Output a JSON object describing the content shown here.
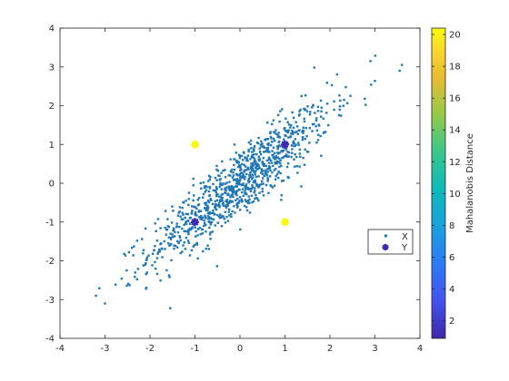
{
  "chart_data": {
    "type": "scatter",
    "title": "",
    "xlabel": "",
    "ylabel": "",
    "xlim": [
      -4,
      4
    ],
    "ylim": [
      -4,
      4
    ],
    "grid": false,
    "legend_position": "center-right",
    "x_ticks": [
      -4,
      -3,
      -2,
      -1,
      0,
      1,
      2,
      3,
      4
    ],
    "y_ticks": [
      -4,
      -3,
      -2,
      -1,
      0,
      1,
      2,
      3,
      4
    ],
    "colorbar": {
      "label": "Mahalanobis Distance",
      "range": [
        0.9,
        20.4
      ],
      "ticks": [
        2,
        4,
        6,
        8,
        10,
        12,
        14,
        16,
        18,
        20
      ],
      "colormap": "parula"
    },
    "series": [
      {
        "name": "X",
        "marker": "point",
        "color": "#1f77b4",
        "note_distribution": {
          "count": 1000,
          "mean": [
            0,
            0
          ],
          "std": [
            1,
            1
          ],
          "correlation": 0.9
        },
        "extreme_points": [
          [
            3.6,
            3.05
          ],
          [
            3.55,
            2.9
          ],
          [
            2.9,
            3.15
          ],
          [
            -3.2,
            -2.9
          ],
          [
            -3.0,
            -3.1
          ]
        ]
      },
      {
        "name": "Y",
        "marker": "asterisk",
        "points": [
          {
            "x": 1,
            "y": 1,
            "distance": 1.1
          },
          {
            "x": -1,
            "y": -1,
            "distance": 1.1
          },
          {
            "x": -1,
            "y": 1,
            "distance": 20.3
          },
          {
            "x": 1,
            "y": -1,
            "distance": 20.3
          }
        ]
      }
    ]
  }
}
